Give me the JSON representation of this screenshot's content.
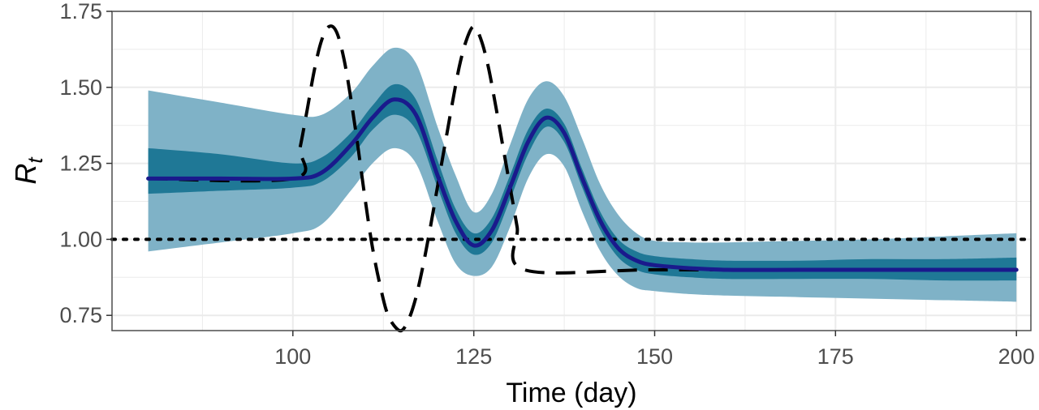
{
  "chart_data": {
    "type": "line",
    "title": "",
    "xlabel": "Time (day)",
    "ylabel": {
      "main": "R",
      "subscript": "t"
    },
    "xlim": [
      75,
      202
    ],
    "ylim": [
      0.7,
      1.75
    ],
    "x_ticks": [
      100,
      125,
      150,
      175,
      200
    ],
    "x_tick_labels": [
      "100",
      "125",
      "150",
      "175",
      "200"
    ],
    "y_ticks": [
      0.75,
      1.0,
      1.25,
      1.5,
      1.75
    ],
    "y_tick_labels": [
      "0.75",
      "1.00",
      "1.25",
      "1.50",
      "1.75"
    ],
    "grid": true,
    "legend": "none",
    "colors": {
      "outer_band": "#7fb2c7",
      "inner_band": "#1f7896",
      "estimate_line": "#1a1a8c",
      "true_line": "#000000",
      "reference_line": "#000000",
      "grid": "#ebebeb",
      "panel_border": "#4d4d4d"
    },
    "reference_line": {
      "y": 1.0,
      "style": "dotted"
    },
    "series": [
      {
        "role": "estimate",
        "style": "solid",
        "x": [
          80,
          90,
          100,
          104,
          108,
          111,
          114,
          117,
          120,
          122.5,
          125,
          127.5,
          130,
          132.5,
          135,
          137.5,
          140,
          142.5,
          145,
          147.5,
          150,
          155,
          160,
          170,
          180,
          190,
          200
        ],
        "values": [
          1.2,
          1.2,
          1.2,
          1.22,
          1.31,
          1.4,
          1.46,
          1.41,
          1.21,
          1.06,
          0.98,
          1.03,
          1.17,
          1.32,
          1.4,
          1.35,
          1.2,
          1.06,
          0.97,
          0.93,
          0.915,
          0.905,
          0.9,
          0.9,
          0.9,
          0.9,
          0.9
        ]
      },
      {
        "role": "inner_band_lower",
        "x": [
          80,
          90,
          100,
          104,
          108,
          111,
          114,
          117,
          120,
          122.5,
          125,
          127.5,
          130,
          132.5,
          135,
          137.5,
          140,
          142.5,
          145,
          147.5,
          150,
          155,
          160,
          170,
          180,
          190,
          200
        ],
        "values": [
          1.15,
          1.16,
          1.17,
          1.19,
          1.27,
          1.36,
          1.41,
          1.36,
          1.17,
          1.02,
          0.95,
          0.99,
          1.13,
          1.28,
          1.37,
          1.32,
          1.17,
          1.03,
          0.94,
          0.9,
          0.885,
          0.875,
          0.87,
          0.87,
          0.87,
          0.865,
          0.865
        ]
      },
      {
        "role": "inner_band_upper",
        "x": [
          80,
          90,
          100,
          104,
          108,
          111,
          114,
          117,
          120,
          122.5,
          125,
          127.5,
          130,
          132.5,
          135,
          137.5,
          140,
          142.5,
          145,
          147.5,
          150,
          155,
          160,
          170,
          180,
          190,
          200
        ],
        "values": [
          1.3,
          1.28,
          1.25,
          1.27,
          1.35,
          1.44,
          1.51,
          1.46,
          1.26,
          1.1,
          1.02,
          1.07,
          1.21,
          1.36,
          1.43,
          1.38,
          1.23,
          1.09,
          1.0,
          0.96,
          0.945,
          0.935,
          0.93,
          0.93,
          0.935,
          0.935,
          0.94
        ]
      },
      {
        "role": "outer_band_lower",
        "x": [
          80,
          90,
          100,
          104,
          108,
          111,
          114,
          117,
          120,
          122.5,
          125,
          127.5,
          130,
          132.5,
          135,
          137.5,
          140,
          142.5,
          145,
          147.5,
          150,
          155,
          160,
          170,
          180,
          190,
          200
        ],
        "values": [
          0.96,
          0.99,
          1.02,
          1.05,
          1.16,
          1.25,
          1.3,
          1.25,
          1.06,
          0.92,
          0.88,
          0.91,
          1.04,
          1.2,
          1.28,
          1.24,
          1.09,
          0.96,
          0.88,
          0.84,
          0.83,
          0.82,
          0.815,
          0.81,
          0.805,
          0.8,
          0.795
        ]
      },
      {
        "role": "outer_band_upper",
        "x": [
          80,
          90,
          100,
          104,
          108,
          111,
          114,
          117,
          120,
          122.5,
          125,
          127.5,
          130,
          132.5,
          135,
          137.5,
          140,
          142.5,
          145,
          147.5,
          150,
          155,
          160,
          170,
          180,
          190,
          200
        ],
        "values": [
          1.49,
          1.45,
          1.41,
          1.41,
          1.48,
          1.57,
          1.63,
          1.58,
          1.37,
          1.21,
          1.09,
          1.15,
          1.31,
          1.46,
          1.52,
          1.47,
          1.33,
          1.18,
          1.08,
          1.02,
          0.995,
          0.99,
          0.99,
          0.995,
          1.0,
          1.01,
          1.02
        ]
      },
      {
        "role": "true",
        "style": "dashed",
        "x": [
          80,
          100,
          101,
          102,
          103,
          104,
          105,
          106,
          107,
          108,
          109,
          110,
          111,
          112,
          113,
          114,
          115,
          116,
          117,
          118,
          119,
          120,
          121,
          122,
          123,
          124,
          125,
          126,
          127,
          128,
          129,
          130,
          131,
          132,
          150,
          175,
          200
        ],
        "values": [
          1.2,
          1.2,
          1.302,
          1.43,
          1.561,
          1.657,
          1.7,
          1.684,
          1.6,
          1.465,
          1.302,
          1.129,
          0.973,
          0.854,
          0.76,
          0.716,
          0.7,
          0.736,
          0.809,
          0.915,
          1.04,
          1.175,
          1.309,
          1.443,
          1.568,
          1.657,
          1.7,
          1.657,
          1.568,
          1.443,
          1.309,
          1.175,
          1.04,
          0.9,
          0.9,
          0.9,
          0.9
        ]
      }
    ]
  }
}
